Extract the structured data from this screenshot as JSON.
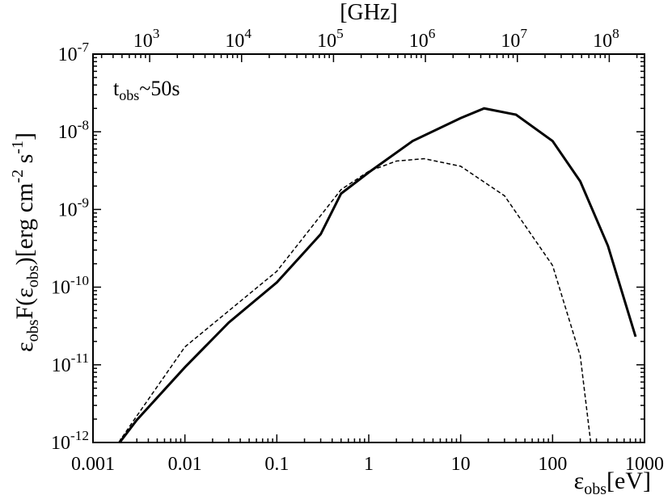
{
  "chart_data": {
    "type": "line",
    "top_axis_label": "[GHz]",
    "xlabel": [
      "ε",
      "obs",
      "[eV]"
    ],
    "ylabel": [
      "ε",
      "obs",
      "F(ε",
      "obs",
      ")[erg cm",
      "-2",
      " s",
      "-1",
      "]"
    ],
    "annotation": [
      "t",
      "obs",
      "~50s"
    ],
    "xscale": "log",
    "yscale": "log",
    "xlim": [
      0.001,
      1000
    ],
    "xticks": [
      0.001,
      0.01,
      0.1,
      1,
      10,
      100,
      1000
    ],
    "x2lim": [
      241.8,
      241800000
    ],
    "x2ticks": [
      {
        "value": 1000,
        "label": "103"
      },
      {
        "value": 10000,
        "label": "104"
      },
      {
        "value": 100000,
        "label": "105"
      },
      {
        "value": 1000000,
        "label": "106"
      },
      {
        "value": 10000000,
        "label": "107"
      },
      {
        "value": 100000000,
        "label": "108"
      }
    ],
    "ylim": [
      1e-12,
      1e-07
    ],
    "yticks": [
      {
        "value": 1e-12,
        "label": "10-12"
      },
      {
        "value": 1e-11,
        "label": "10-11"
      },
      {
        "value": 1e-10,
        "label": "10-10"
      },
      {
        "value": 1e-09,
        "label": "10-9"
      },
      {
        "value": 1e-08,
        "label": "10-8"
      },
      {
        "value": 1e-07,
        "label": "10-7"
      }
    ],
    "series": [
      {
        "color": "#000000",
        "style": "solid",
        "x": [
          0.00195,
          0.003,
          0.01,
          0.03,
          0.1,
          0.3,
          0.5,
          1,
          3,
          10,
          18,
          40,
          100,
          200,
          400,
          800
        ],
        "values": [
          1e-12,
          1.95e-12,
          9.3e-12,
          3.5e-11,
          1.15e-10,
          4.8e-10,
          1.6e-09,
          3e-09,
          7.6e-09,
          1.5e-08,
          2e-08,
          1.66e-08,
          7.6e-09,
          2.3e-09,
          3.4e-10,
          2.3e-11
        ]
      },
      {
        "color": "#000000",
        "style": "dashed",
        "x": [
          0.0019,
          0.003,
          0.01,
          0.1,
          0.5,
          1,
          2,
          4,
          10,
          30,
          100,
          200,
          260
        ],
        "values": [
          1e-12,
          2.2e-12,
          1.7e-11,
          1.6e-10,
          1.8e-09,
          3.1e-09,
          4.2e-09,
          4.5e-09,
          3.6e-09,
          1.5e-09,
          1.9e-10,
          1.3e-11,
          1e-12
        ]
      }
    ]
  }
}
